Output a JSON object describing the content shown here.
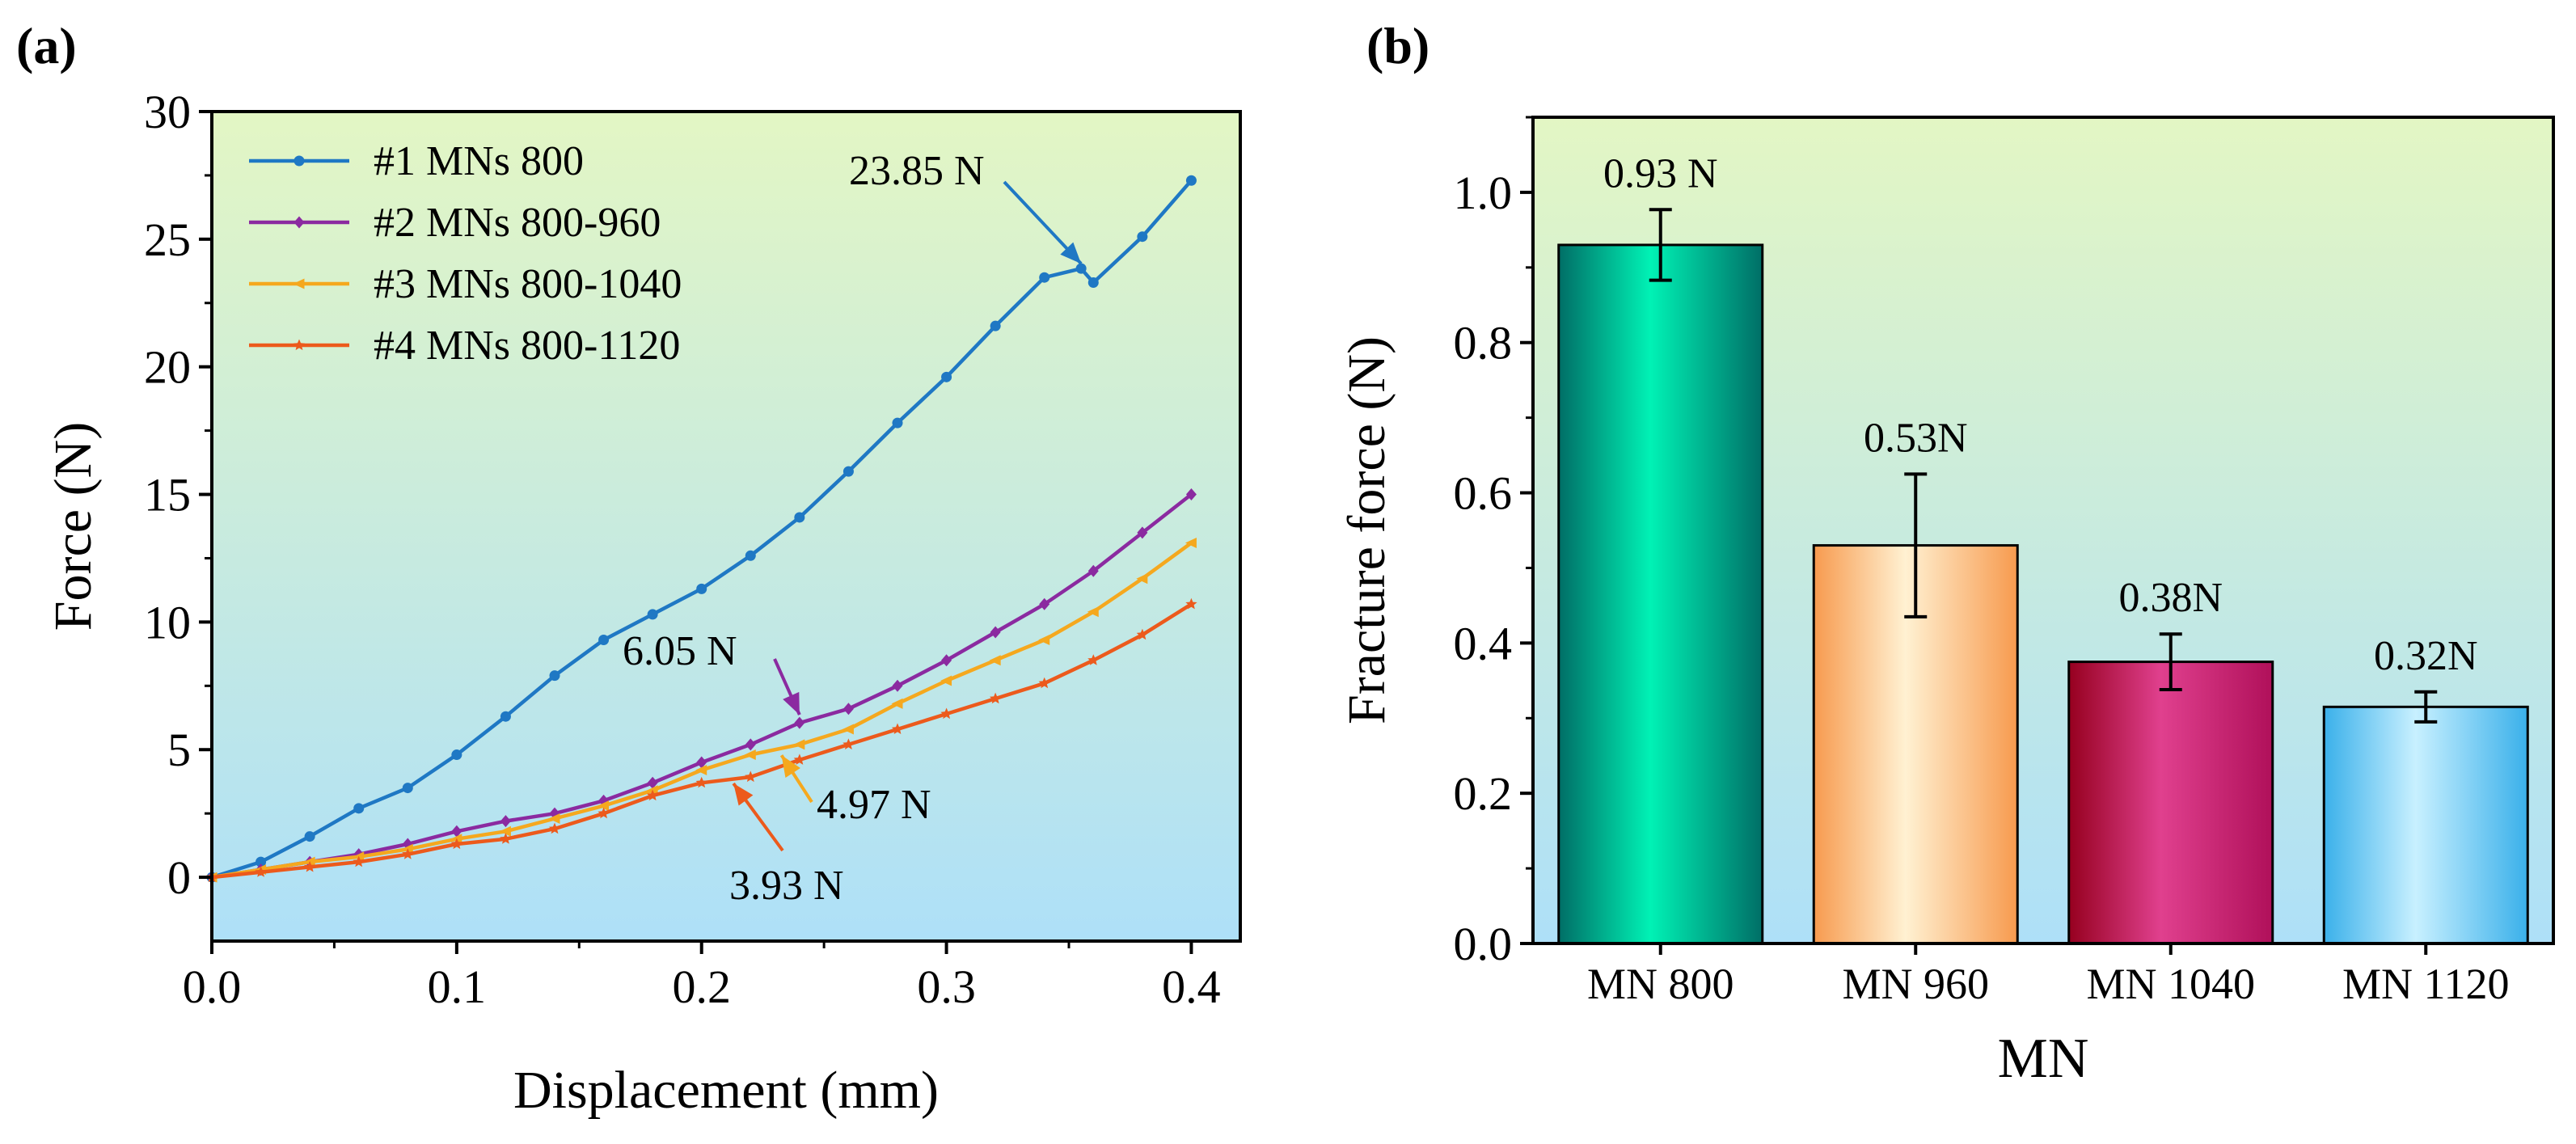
{
  "panel_labels": {
    "a": "(a)",
    "b": "(b)"
  },
  "colors": {
    "s1": "#1f78c4",
    "s2": "#8b2aa0",
    "s3": "#f5a81e",
    "s4": "#ec5a1c",
    "bg_top": "#e3f6c4",
    "bg_bottom": "#aee0f8"
  },
  "chart_data": [
    {
      "type": "line",
      "panel": "(a)",
      "xlabel": "Displacement (mm)",
      "ylabel": "Force (N)",
      "xlim": [
        0,
        0.42
      ],
      "ylim": [
        -2.5,
        30
      ],
      "xticks": [
        0.0,
        0.1,
        0.2,
        0.3,
        0.4
      ],
      "xtick_labels": [
        "0.0",
        "0.1",
        "0.2",
        "0.3",
        "0.4"
      ],
      "yticks": [
        0,
        5,
        10,
        15,
        20,
        25,
        30
      ],
      "ytick_labels": [
        "0",
        "5",
        "10",
        "15",
        "20",
        "25",
        "30"
      ],
      "legend_position": "top-left",
      "series": [
        {
          "name": "#1 MNs 800",
          "color": "#1f78c4",
          "marker": "circle",
          "x": [
            0,
            0.02,
            0.04,
            0.06,
            0.08,
            0.1,
            0.12,
            0.14,
            0.16,
            0.18,
            0.2,
            0.22,
            0.24,
            0.26,
            0.28,
            0.3,
            0.32,
            0.34,
            0.355,
            0.36,
            0.38,
            0.4
          ],
          "y": [
            0,
            0.6,
            1.6,
            2.7,
            3.5,
            4.8,
            6.3,
            7.9,
            9.3,
            10.3,
            11.3,
            12.6,
            14.1,
            15.9,
            17.8,
            19.6,
            21.6,
            23.5,
            23.85,
            23.3,
            25.1,
            27.3
          ]
        },
        {
          "name": "#2 MNs 800-960",
          "color": "#8b2aa0",
          "marker": "diamond",
          "x": [
            0,
            0.02,
            0.04,
            0.06,
            0.08,
            0.1,
            0.12,
            0.14,
            0.16,
            0.18,
            0.2,
            0.22,
            0.24,
            0.26,
            0.28,
            0.3,
            0.32,
            0.34,
            0.36,
            0.38,
            0.4
          ],
          "y": [
            0,
            0.3,
            0.6,
            0.9,
            1.3,
            1.8,
            2.2,
            2.5,
            3.0,
            3.7,
            4.5,
            5.2,
            6.05,
            6.6,
            7.5,
            8.5,
            9.6,
            10.7,
            12.0,
            13.5,
            15.0
          ]
        },
        {
          "name": "#3 MNs 800-1040",
          "color": "#f5a81e",
          "marker": "triangle",
          "x": [
            0,
            0.02,
            0.04,
            0.06,
            0.08,
            0.1,
            0.12,
            0.14,
            0.16,
            0.18,
            0.2,
            0.22,
            0.24,
            0.26,
            0.28,
            0.3,
            0.32,
            0.34,
            0.36,
            0.38,
            0.4
          ],
          "y": [
            0,
            0.3,
            0.6,
            0.8,
            1.1,
            1.5,
            1.8,
            2.3,
            2.8,
            3.4,
            4.2,
            4.8,
            5.2,
            5.8,
            6.8,
            7.7,
            8.5,
            9.3,
            10.4,
            11.7,
            13.1
          ]
        },
        {
          "name": "#4 MNs 800-1120",
          "color": "#ec5a1c",
          "marker": "star",
          "x": [
            0,
            0.02,
            0.04,
            0.06,
            0.08,
            0.1,
            0.12,
            0.14,
            0.16,
            0.18,
            0.2,
            0.22,
            0.24,
            0.26,
            0.28,
            0.3,
            0.32,
            0.34,
            0.36,
            0.38,
            0.4
          ],
          "y": [
            0,
            0.2,
            0.4,
            0.6,
            0.9,
            1.3,
            1.5,
            1.9,
            2.5,
            3.2,
            3.7,
            3.93,
            4.6,
            5.2,
            5.8,
            6.4,
            7.0,
            7.6,
            8.5,
            9.5,
            10.7
          ]
        }
      ],
      "annotations": [
        {
          "text": "23.85 N",
          "series": 0,
          "x": 0.355,
          "y": 23.85
        },
        {
          "text": "6.05 N",
          "series": 1,
          "x": 0.24,
          "y": 6.05
        },
        {
          "text": "4.97 N",
          "series": 2,
          "x": 0.23,
          "y": 4.97
        },
        {
          "text": "3.93 N",
          "series": 3,
          "x": 0.215,
          "y": 3.93
        }
      ]
    },
    {
      "type": "bar",
      "panel": "(b)",
      "xlabel": "MN",
      "ylabel": "Fracture force (N)",
      "ylim": [
        0,
        1.1
      ],
      "yticks": [
        0.0,
        0.2,
        0.4,
        0.6,
        0.8,
        1.0
      ],
      "ytick_labels": [
        "0.0",
        "0.2",
        "0.4",
        "0.6",
        "0.8",
        "1.0"
      ],
      "categories": [
        "MN 800",
        "MN 960",
        "MN 1040",
        "MN 1120"
      ],
      "values": [
        0.93,
        0.53,
        0.375,
        0.315
      ],
      "errors": [
        0.047,
        0.095,
        0.037,
        0.02
      ],
      "value_labels": [
        "0.93 N",
        "0.53N",
        "0.38N",
        "0.32N"
      ],
      "bar_colors": [
        [
          "#006e66",
          "#00f2b5",
          "#006e66"
        ],
        [
          "#f79a4e",
          "#fff1d2",
          "#f79a4e"
        ],
        [
          "#96001f",
          "#e0408e",
          "#b0105a"
        ],
        [
          "#3ab0ea",
          "#c8f0ff",
          "#3ab0ea"
        ]
      ]
    }
  ]
}
